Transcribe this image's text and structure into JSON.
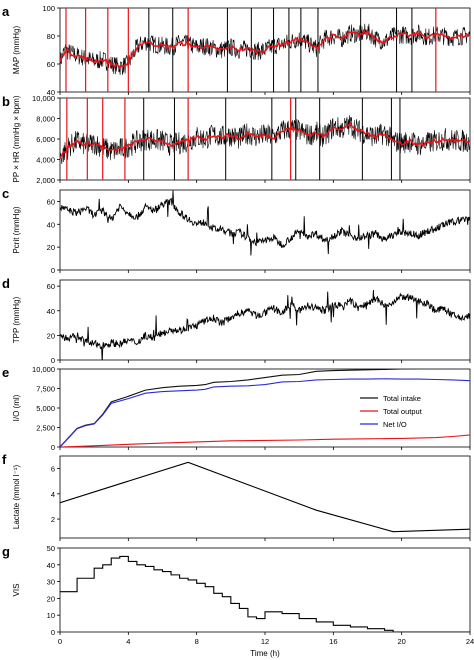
{
  "figure": {
    "shared_x": {
      "label": "Time (h)",
      "ticks": [
        "0",
        "4",
        "8",
        "12",
        "16",
        "20",
        "24"
      ],
      "lim": [
        0,
        24
      ]
    },
    "panels": [
      {
        "letter": "a",
        "ylabel": "MAP (mmHg)",
        "yticks": [
          "40",
          "60",
          "80",
          "100"
        ],
        "ylim": [
          40,
          100
        ]
      },
      {
        "letter": "b",
        "ylabel": "PP × HR (mmHg × bpm)",
        "yticks": [
          "2,000",
          "4,000",
          "6,000",
          "8,000",
          "10,000"
        ],
        "ylim": [
          2000,
          10000
        ]
      },
      {
        "letter": "c",
        "ylabel": "Pcrit (mmHg)",
        "yticks": [
          "0",
          "20",
          "40",
          "60"
        ],
        "ylim": [
          0,
          70
        ]
      },
      {
        "letter": "d",
        "ylabel": "TPP (mmHg)",
        "yticks": [
          "0",
          "20",
          "40",
          "60"
        ],
        "ylim": [
          0,
          65
        ]
      },
      {
        "letter": "e",
        "ylabel": "I/O (ml)",
        "yticks": [
          "0",
          "2,500",
          "5,000",
          "7,500",
          "10,000"
        ],
        "ylim": [
          0,
          10000
        ]
      },
      {
        "letter": "f",
        "ylabel": "Lactate (mmol l⁻¹)",
        "yticks": [
          "2",
          "4",
          "6"
        ],
        "ylim": [
          0.5,
          7
        ]
      },
      {
        "letter": "g",
        "ylabel": "VIS",
        "yticks": [
          "0",
          "10",
          "20",
          "30",
          "40",
          "50"
        ],
        "ylim": [
          0,
          50
        ]
      }
    ],
    "colors": {
      "axis": "#000000",
      "trace": "#000000",
      "mean": "#e8141b",
      "intake": "#111111",
      "output": "#e8141b",
      "net": "#2b2bd6"
    }
  },
  "chart_data": [
    {
      "type": "line",
      "panel": "a",
      "xlabel": "",
      "ylabel": "MAP (mmHg)",
      "xlim": [
        0,
        24
      ],
      "ylim": [
        40,
        100
      ],
      "series": [
        {
          "x": [
            0,
            0.3,
            0.6,
            1,
            1.5,
            2,
            2.5,
            3,
            3.5,
            4,
            4.5,
            5,
            5.5,
            6,
            6.5,
            7,
            7.5,
            8,
            8.5,
            9,
            9.5,
            10,
            10.5,
            11,
            11.5,
            12,
            12.5,
            13,
            13.5,
            14,
            14.5,
            15,
            15.5,
            16,
            16.5,
            17,
            17.5,
            18,
            18.5,
            19,
            19.5,
            20,
            20.5,
            21,
            21.5,
            22,
            22.5,
            23,
            23.5,
            24
          ],
          "y": [
            62,
            70,
            68,
            66,
            64,
            62,
            63,
            60,
            58,
            60,
            72,
            76,
            74,
            73,
            72,
            75,
            74,
            72,
            73,
            71,
            70,
            72,
            70,
            71,
            69,
            70,
            73,
            74,
            76,
            78,
            75,
            71,
            78,
            80,
            78,
            82,
            81,
            83,
            78,
            76,
            80,
            81,
            80,
            82,
            79,
            81,
            80,
            79,
            80,
            81
          ],
          "tick_marks_red": [
            0.35,
            1.5,
            2.8,
            4,
            7.5,
            22
          ],
          "spikes_black": [
            5.2,
            6.6,
            9.8,
            11.2,
            12.5,
            13.4,
            14.1,
            15.1,
            17.6,
            19.7,
            20.6
          ]
        }
      ]
    },
    {
      "type": "line",
      "panel": "b",
      "xlabel": "",
      "ylabel": "PP × HR (mmHg × bpm)",
      "xlim": [
        0,
        24
      ],
      "ylim": [
        2000,
        10000
      ],
      "series": [
        {
          "x": [
            0,
            0.5,
            1,
            1.5,
            2,
            2.5,
            3,
            3.5,
            4,
            4.5,
            5,
            5.5,
            6,
            6.5,
            7,
            7.5,
            8,
            8.5,
            9,
            9.5,
            10,
            10.5,
            11,
            11.5,
            12,
            12.5,
            13,
            13.5,
            14,
            14.5,
            15,
            15.5,
            16,
            16.5,
            17,
            17.5,
            18,
            18.5,
            19,
            19.5,
            20,
            20.5,
            21,
            21.5,
            22,
            22.5,
            23,
            23.5,
            24
          ],
          "y": [
            4200,
            5200,
            5800,
            5400,
            5600,
            5200,
            4800,
            5000,
            5300,
            5700,
            6000,
            5900,
            5800,
            5400,
            5600,
            5800,
            6200,
            6000,
            6400,
            6200,
            6400,
            6000,
            6600,
            6200,
            6400,
            6200,
            6800,
            7000,
            6800,
            6400,
            6600,
            6200,
            7200,
            7000,
            7400,
            6800,
            6500,
            6200,
            6600,
            5800,
            5600,
            5800,
            5400,
            5600,
            5800,
            6000,
            5900,
            5800,
            5800
          ],
          "tick_marks_red": [
            0.4,
            1.6,
            2.5,
            3.8,
            7.5,
            13.5
          ],
          "spikes_black": [
            4.9,
            6.7,
            9.7,
            12.4,
            13.8,
            15.2,
            17.7,
            19.4,
            19.9
          ]
        }
      ]
    },
    {
      "type": "line",
      "panel": "c",
      "xlabel": "",
      "ylabel": "Pcrit (mmHg)",
      "xlim": [
        0,
        24
      ],
      "ylim": [
        0,
        70
      ],
      "series": [
        {
          "x": [
            0,
            0.5,
            1,
            1.5,
            2,
            2.5,
            3,
            3.5,
            4,
            4.5,
            5,
            5.5,
            6,
            6.5,
            7,
            7.5,
            8,
            8.5,
            9,
            9.5,
            10,
            10.5,
            11,
            11.5,
            12,
            12.5,
            13,
            13.5,
            14,
            14.5,
            15,
            15.5,
            16,
            16.5,
            17,
            17.5,
            18,
            18.5,
            19,
            19.5,
            20,
            20.5,
            21,
            21.5,
            22,
            22.5,
            23,
            23.5,
            24
          ],
          "y": [
            55,
            52,
            50,
            54,
            48,
            52,
            44,
            56,
            50,
            46,
            55,
            52,
            58,
            60,
            50,
            45,
            40,
            42,
            36,
            35,
            32,
            33,
            28,
            24,
            26,
            28,
            22,
            28,
            34,
            30,
            32,
            26,
            30,
            34,
            30,
            28,
            30,
            32,
            26,
            31,
            33,
            32,
            30,
            34,
            36,
            40,
            42,
            44,
            46
          ]
        }
      ]
    },
    {
      "type": "line",
      "panel": "d",
      "xlabel": "",
      "ylabel": "TPP (mmHg)",
      "xlim": [
        0,
        24
      ],
      "ylim": [
        0,
        65
      ],
      "series": [
        {
          "x": [
            0,
            0.5,
            1,
            1.5,
            2,
            2.5,
            3,
            3.5,
            4,
            4.5,
            5,
            5.5,
            6,
            6.5,
            7,
            7.5,
            8,
            8.5,
            9,
            9.5,
            10,
            10.5,
            11,
            11.5,
            12,
            12.5,
            13,
            13.5,
            14,
            14.5,
            15,
            15.5,
            16,
            16.5,
            17,
            17.5,
            18,
            18.5,
            19,
            19.5,
            20,
            20.5,
            21,
            21.5,
            22,
            22.5,
            23,
            23.5,
            24
          ],
          "y": [
            20,
            17,
            20,
            15,
            13,
            12,
            14,
            13,
            16,
            14,
            20,
            18,
            22,
            25,
            24,
            26,
            28,
            32,
            34,
            30,
            35,
            38,
            40,
            36,
            38,
            42,
            38,
            45,
            40,
            44,
            42,
            40,
            45,
            44,
            48,
            42,
            46,
            50,
            44,
            46,
            52,
            50,
            48,
            46,
            40,
            42,
            36,
            34,
            36
          ]
        }
      ]
    },
    {
      "type": "line",
      "panel": "e",
      "xlabel": "",
      "ylabel": "I/O (ml)",
      "xlim": [
        0,
        24
      ],
      "ylim": [
        0,
        10000
      ],
      "legend": "right",
      "series": [
        {
          "name": "Total intake",
          "x": [
            0,
            0.5,
            1,
            1.5,
            2,
            2.5,
            3,
            4,
            5,
            6,
            7,
            8,
            8.5,
            9,
            10,
            11,
            12,
            13,
            14,
            15,
            16,
            17,
            18,
            19,
            20,
            21,
            22,
            23,
            24
          ],
          "y": [
            0,
            1200,
            2400,
            2800,
            3000,
            4200,
            5800,
            6500,
            7300,
            7600,
            7800,
            7900,
            8000,
            8300,
            8400,
            8600,
            8900,
            9200,
            9300,
            9700,
            9800,
            9850,
            9900,
            9950,
            10000,
            10050,
            10100,
            10150,
            10200
          ]
        },
        {
          "name": "Total output",
          "x": [
            0,
            2,
            4,
            6,
            8,
            10,
            12,
            14,
            16,
            18,
            20,
            22,
            23,
            24
          ],
          "y": [
            0,
            150,
            350,
            500,
            650,
            800,
            850,
            900,
            1000,
            1050,
            1100,
            1200,
            1350,
            1550
          ]
        },
        {
          "name": "Net I/O",
          "x": [
            0,
            0.5,
            1,
            1.5,
            2,
            2.5,
            3,
            4,
            5,
            6,
            7,
            8,
            8.5,
            9,
            10,
            11,
            12,
            13,
            14,
            15,
            16,
            17,
            18,
            19,
            20,
            21,
            22,
            23,
            24
          ],
          "y": [
            0,
            1150,
            2350,
            2750,
            2950,
            4100,
            5600,
            6200,
            6900,
            7100,
            7200,
            7300,
            7400,
            7700,
            7800,
            7850,
            8000,
            8350,
            8400,
            8600,
            8650,
            8700,
            8700,
            8750,
            8700,
            8700,
            8650,
            8600,
            8500
          ]
        }
      ]
    },
    {
      "type": "line",
      "panel": "f",
      "xlabel": "",
      "ylabel": "Lactate (mmol l⁻¹)",
      "xlim": [
        0,
        24
      ],
      "ylim": [
        0.5,
        7
      ],
      "series": [
        {
          "x": [
            0,
            7.5,
            15,
            19.5,
            24
          ],
          "y": [
            3.3,
            6.5,
            2.7,
            1.0,
            1.2
          ]
        }
      ]
    },
    {
      "type": "line",
      "panel": "g",
      "xlabel": "Time (h)",
      "ylabel": "VIS",
      "xlim": [
        0,
        24
      ],
      "ylim": [
        0,
        50
      ],
      "series": [
        {
          "step": true,
          "x": [
            0,
            0.5,
            1,
            1.5,
            2,
            2.5,
            3,
            3.5,
            4,
            4.5,
            5,
            5.5,
            6,
            6.5,
            7,
            7.5,
            8,
            8.5,
            9,
            9.5,
            10,
            10.5,
            11,
            11.5,
            12,
            13,
            14,
            15,
            16,
            17,
            18,
            19,
            19.5,
            24
          ],
          "y": [
            24,
            24,
            32,
            32,
            38,
            40,
            44,
            45,
            42,
            40,
            39,
            37,
            36,
            34,
            32,
            31,
            29,
            27,
            23,
            21,
            17,
            14,
            9,
            8,
            12,
            11,
            8,
            6,
            4,
            3,
            2,
            1,
            0,
            0
          ]
        }
      ]
    }
  ]
}
